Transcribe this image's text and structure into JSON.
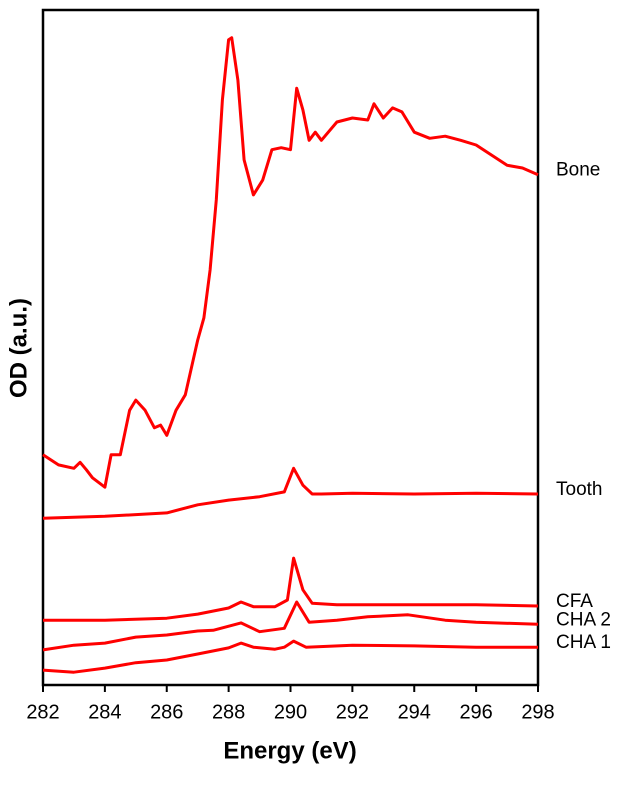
{
  "chart_data": {
    "type": "line",
    "xlabel": "Energy (eV)",
    "ylabel": "OD (a.u.)",
    "xlim": [
      282,
      298
    ],
    "xticks": [
      282,
      284,
      286,
      288,
      290,
      292,
      294,
      296,
      298
    ],
    "ylim": [
      0,
      100
    ],
    "series": [
      {
        "name": "Bone",
        "color": "#ff0000",
        "x": [
          282,
          282.5,
          283,
          283.2,
          283.4,
          283.6,
          284,
          284.2,
          284.5,
          284.8,
          285,
          285.3,
          285.6,
          285.8,
          286,
          286.3,
          286.6,
          287,
          287.2,
          287.4,
          287.6,
          287.8,
          288,
          288.1,
          288.3,
          288.5,
          288.8,
          289.1,
          289.4,
          289.7,
          290,
          290.2,
          290.4,
          290.6,
          290.8,
          291,
          291.5,
          292,
          292.5,
          292.7,
          293,
          293.3,
          293.6,
          294,
          294.5,
          295,
          295.5,
          296,
          296.5,
          297,
          297.5,
          298
        ],
        "values": [
          34.1,
          32.6,
          32.1,
          33.0,
          31.9,
          30.7,
          29.3,
          34.1,
          34.1,
          40.7,
          42.2,
          40.7,
          38.1,
          38.5,
          37.0,
          40.7,
          43.0,
          51.1,
          54.4,
          61.5,
          71.9,
          86.7,
          95.6,
          95.9,
          89.6,
          77.8,
          72.6,
          74.8,
          79.3,
          79.6,
          79.3,
          88.4,
          85.2,
          80.7,
          81.9,
          80.7,
          83.4,
          84.0,
          83.7,
          86.1,
          84.0,
          85.5,
          84.9,
          81.9,
          81.0,
          81.3,
          80.7,
          80.0,
          78.5,
          77.0,
          76.6,
          75.6
        ]
      },
      {
        "name": "Tooth",
        "color": "#ff0000",
        "x": [
          282,
          284,
          286,
          287,
          288,
          289,
          289.8,
          290.1,
          290.4,
          290.7,
          291,
          292,
          294,
          296,
          298
        ],
        "values": [
          24.7,
          25.0,
          25.5,
          26.7,
          27.4,
          27.9,
          28.6,
          32.1,
          29.6,
          28.3,
          28.3,
          28.4,
          28.3,
          28.4,
          28.3
        ]
      },
      {
        "name": "CFA",
        "color": "#ff0000",
        "x": [
          282,
          284,
          286,
          287,
          288,
          288.4,
          288.8,
          289.5,
          289.9,
          290.1,
          290.4,
          290.7,
          291.5,
          294,
          296,
          298
        ],
        "values": [
          9.6,
          9.6,
          9.9,
          10.5,
          11.4,
          12.3,
          11.6,
          11.6,
          12.6,
          18.8,
          14.1,
          12.1,
          11.9,
          11.9,
          11.9,
          11.7
        ]
      },
      {
        "name": "CHA 2",
        "color": "#ff0000",
        "x": [
          282,
          283,
          284,
          285,
          286,
          287,
          287.5,
          288.4,
          289,
          289.8,
          290.2,
          290.6,
          291.5,
          292.5,
          293.8,
          295,
          296,
          298
        ],
        "values": [
          5.2,
          5.9,
          6.2,
          7.1,
          7.4,
          8.0,
          8.1,
          9.2,
          7.9,
          8.4,
          12.3,
          9.3,
          9.6,
          10.1,
          10.4,
          9.6,
          9.3,
          9.0
        ]
      },
      {
        "name": "CHA 1",
        "color": "#ff0000",
        "x": [
          282,
          283,
          284,
          285,
          286,
          287,
          288,
          288.4,
          288.8,
          289.5,
          289.8,
          290.1,
          290.5,
          292,
          294,
          296,
          298
        ],
        "values": [
          2.2,
          1.9,
          2.5,
          3.3,
          3.7,
          4.6,
          5.5,
          6.2,
          5.6,
          5.3,
          5.6,
          6.5,
          5.6,
          5.9,
          5.8,
          5.6,
          5.6
        ]
      }
    ]
  }
}
